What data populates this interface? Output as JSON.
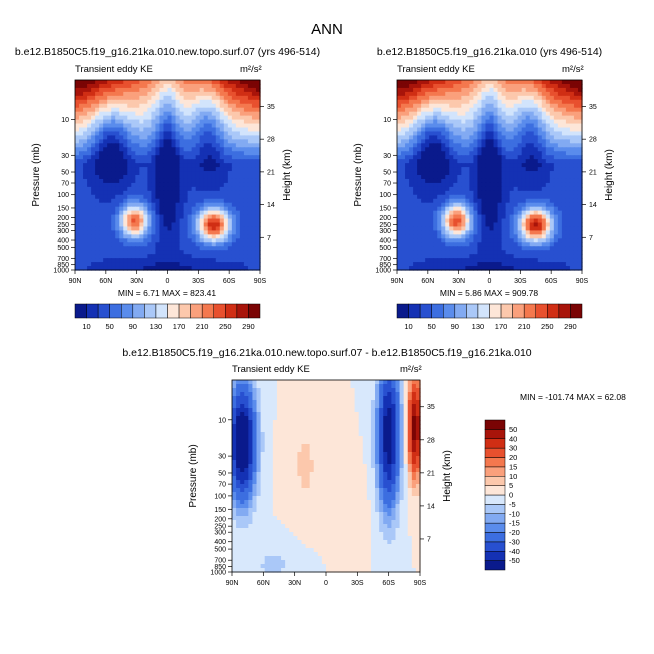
{
  "figure": {
    "title": "ANN",
    "units": "m²/s²",
    "variable_label": "Transient eddy KE"
  },
  "chart_data": [
    {
      "type": "heatmap",
      "id": "panel-1",
      "title": "b.e12.B1850C5.f19_g16.21ka.010.new.topo.surf.07 (yrs 496-514)",
      "subtitle": "Transient eddy KE",
      "units": "m²/s²",
      "xlabel": "",
      "ylabel": "Pressure (mb)",
      "ylabel_right": "Height (km)",
      "x_ticks": [
        "90N",
        "60N",
        "30N",
        "0",
        "30S",
        "60S",
        "90S"
      ],
      "y_ticks": [
        "10",
        "30",
        "50",
        "70",
        "100",
        "150",
        "200",
        "250",
        "300",
        "400",
        "500",
        "700",
        "850",
        "1000"
      ],
      "y_right_ticks": [
        "7",
        "14",
        "21",
        "28",
        "35"
      ],
      "log_y": true,
      "ylim": [
        1000,
        3
      ],
      "stats": "MIN =   6.71  MAX = 823.41",
      "colorbar": {
        "levels": [
          10,
          30,
          50,
          70,
          90,
          110,
          130,
          150,
          170,
          190,
          210,
          230,
          250,
          270,
          290
        ],
        "labels": [
          "10",
          "50",
          "90",
          "130",
          "170",
          "210",
          "250",
          "290"
        ],
        "colors": [
          "#0a1a8c",
          "#1431b4",
          "#2850d0",
          "#3c6ee0",
          "#5a8cec",
          "#82aaf2",
          "#aac8f8",
          "#d2e4fc",
          "#fde6d8",
          "#fcc8ac",
          "#faa07c",
          "#f4784e",
          "#e8502e",
          "#d02e14",
          "#a8140a",
          "#7a0404"
        ]
      }
    },
    {
      "type": "heatmap",
      "id": "panel-2",
      "title": "b.e12.B1850C5.f19_g16.21ka.010 (yrs 496-514)",
      "subtitle": "Transient eddy KE",
      "units": "m²/s²",
      "xlabel": "",
      "ylabel": "Pressure (mb)",
      "ylabel_right": "Height (km)",
      "x_ticks": [
        "90N",
        "60N",
        "30N",
        "0",
        "30S",
        "60S",
        "90S"
      ],
      "y_ticks": [
        "10",
        "30",
        "50",
        "70",
        "100",
        "150",
        "200",
        "250",
        "300",
        "400",
        "500",
        "700",
        "850",
        "1000"
      ],
      "y_right_ticks": [
        "7",
        "14",
        "21",
        "28",
        "35"
      ],
      "log_y": true,
      "ylim": [
        1000,
        3
      ],
      "stats": "MIN =   5.86  MAX = 909.78",
      "colorbar": {
        "levels": [
          10,
          30,
          50,
          70,
          90,
          110,
          130,
          150,
          170,
          190,
          210,
          230,
          250,
          270,
          290
        ],
        "labels": [
          "10",
          "50",
          "90",
          "130",
          "170",
          "210",
          "250",
          "290"
        ],
        "colors": [
          "#0a1a8c",
          "#1431b4",
          "#2850d0",
          "#3c6ee0",
          "#5a8cec",
          "#82aaf2",
          "#aac8f8",
          "#d2e4fc",
          "#fde6d8",
          "#fcc8ac",
          "#faa07c",
          "#f4784e",
          "#e8502e",
          "#d02e14",
          "#a8140a",
          "#7a0404"
        ]
      }
    },
    {
      "type": "heatmap",
      "id": "panel-diff",
      "title": "b.e12.B1850C5.f19_g16.21ka.010.new.topo.surf.07 - b.e12.B1850C5.f19_g16.21ka.010",
      "subtitle": "Transient eddy KE",
      "units": "m²/s²",
      "xlabel": "",
      "ylabel": "Pressure (mb)",
      "ylabel_right": "Height (km)",
      "x_ticks": [
        "90N",
        "60N",
        "30N",
        "0",
        "30S",
        "60S",
        "90S"
      ],
      "y_ticks": [
        "10",
        "30",
        "50",
        "70",
        "100",
        "150",
        "200",
        "250",
        "300",
        "400",
        "500",
        "700",
        "850",
        "1000"
      ],
      "y_right_ticks": [
        "7",
        "14",
        "21",
        "28",
        "35"
      ],
      "log_y": true,
      "ylim": [
        1000,
        3
      ],
      "stats": "MIN = -101.74  MAX =  62.08",
      "colorbar": {
        "levels": [
          -50,
          -40,
          -30,
          -20,
          -15,
          -10,
          -5,
          0,
          5,
          10,
          15,
          20,
          30,
          40,
          50
        ],
        "labels": [
          "-50",
          "-40",
          "-30",
          "-20",
          "-15",
          "-10",
          "-5",
          "0",
          "5",
          "10",
          "15",
          "20",
          "30",
          "40",
          "50"
        ],
        "colors": [
          "#0a1a8c",
          "#1431b4",
          "#2850d0",
          "#3c6ee0",
          "#5a8cec",
          "#82aaf2",
          "#aac8f8",
          "#d8e8fc",
          "#fde6d8",
          "#fcc8ac",
          "#faa07c",
          "#f4784e",
          "#e8502e",
          "#d02e14",
          "#a8140a",
          "#7a0404"
        ]
      }
    }
  ]
}
